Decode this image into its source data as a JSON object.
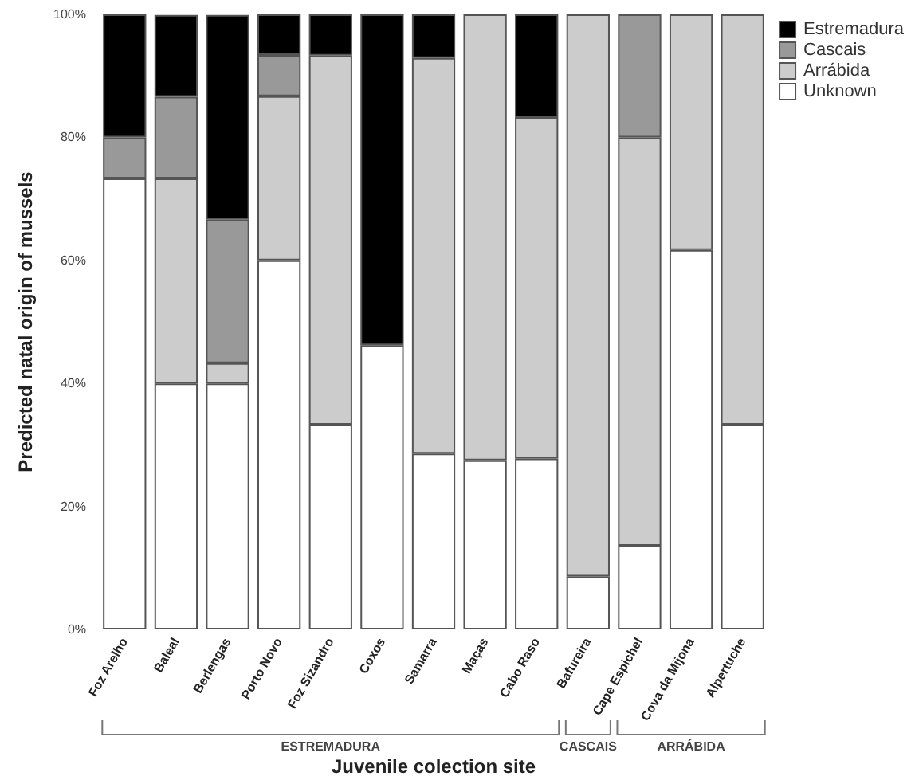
{
  "chart_data": {
    "type": "bar",
    "stacked": true,
    "xlabel": "Juvenile colection site",
    "ylabel": "Predicted natal origin of mussels",
    "categories": [
      "Foz Arelho",
      "Baleal",
      "Berlengas",
      "Porto Novo",
      "Foz Sizandro",
      "Coxos",
      "Samarra",
      "Maças",
      "Cabo Raso",
      "Bafureira",
      "Cape Espichel",
      "Cova da Mijona",
      "Alpertuche"
    ],
    "series": [
      {
        "name": "Unknown",
        "color": "#ffffff",
        "values": [
          73.3,
          40,
          40,
          60,
          33.3,
          46.2,
          28.6,
          27.5,
          27.8,
          8.6,
          13.6,
          61.7,
          33.3
        ]
      },
      {
        "name": "Arrábida",
        "color": "#cccccc",
        "values": [
          0,
          33.3,
          3.3,
          26.7,
          60,
          0,
          64.3,
          72.5,
          55.5,
          91.4,
          66.4,
          38.3,
          66.7
        ]
      },
      {
        "name": "Cascais",
        "color": "#999999",
        "values": [
          6.7,
          13.3,
          23.3,
          6.7,
          0,
          0,
          0,
          0,
          0,
          0,
          20,
          0,
          0
        ]
      },
      {
        "name": "Estremadura",
        "color": "#000000",
        "values": [
          20,
          13.3,
          33.3,
          6.6,
          6.7,
          53.8,
          7.1,
          0,
          16.7,
          0,
          0,
          0,
          0
        ]
      }
    ],
    "ylim": [
      0,
      100
    ],
    "yticks": [
      {
        "value": 0,
        "label": "0%"
      },
      {
        "value": 20,
        "label": "20%"
      },
      {
        "value": 40,
        "label": "40%"
      },
      {
        "value": 60,
        "label": "60%"
      },
      {
        "value": 80,
        "label": "80%"
      },
      {
        "value": 100,
        "label": "100%"
      }
    ],
    "grid": false,
    "legend": "top right",
    "annotations": [
      "ESTREMADURA",
      "CASCAIS",
      "ARRÁBIDA"
    ]
  }
}
